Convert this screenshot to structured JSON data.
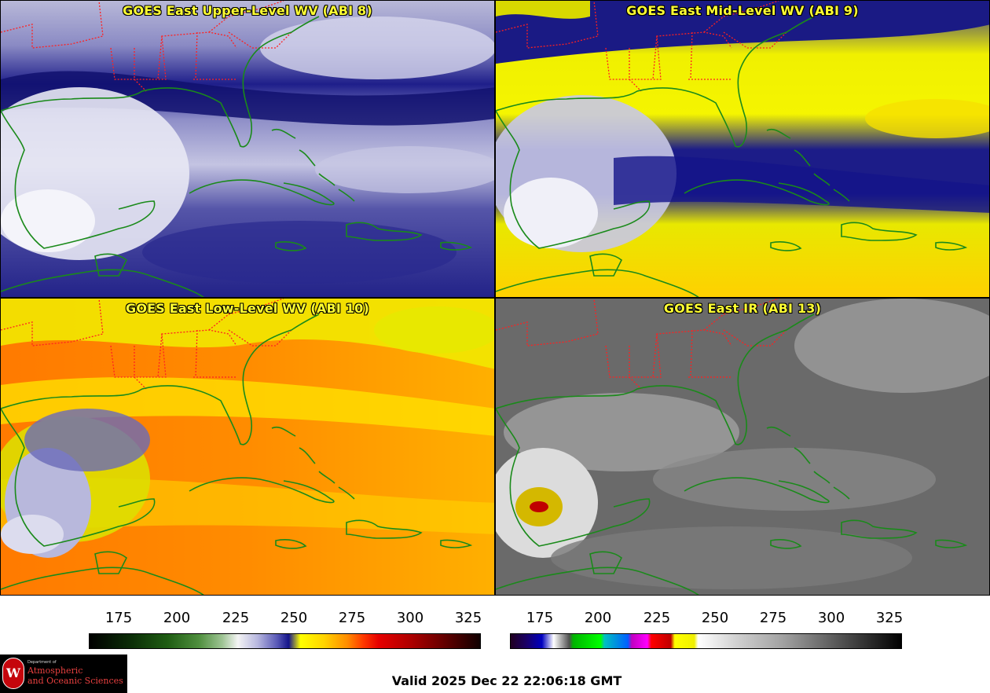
{
  "panels": [
    {
      "id": "upper",
      "title": "GOES East Upper-Level WV (ABI 8)"
    },
    {
      "id": "mid",
      "title": "GOES East Mid-Level WV (ABI 9)"
    },
    {
      "id": "low",
      "title": "GOES East Low-Level WV (ABI 10)"
    },
    {
      "id": "ir",
      "title": "GOES East IR (ABI 13)"
    }
  ],
  "colorbars": {
    "wv": {
      "ticks": [
        "175",
        "200",
        "225",
        "250",
        "275",
        "300",
        "325"
      ]
    },
    "ir": {
      "ticks": [
        "175",
        "200",
        "225",
        "250",
        "275",
        "300",
        "325"
      ]
    }
  },
  "logo": {
    "seal_letter": "W",
    "dept": "Department of",
    "line1": "Atmospheric",
    "line2": "and Oceanic Sciences"
  },
  "valid_time": "Valid 2025 Dec 22 22:06:18 GMT",
  "colors": {
    "state_borders": "#ff2020",
    "coastlines": "#1a8a1a",
    "title_text": "#ffff33"
  }
}
